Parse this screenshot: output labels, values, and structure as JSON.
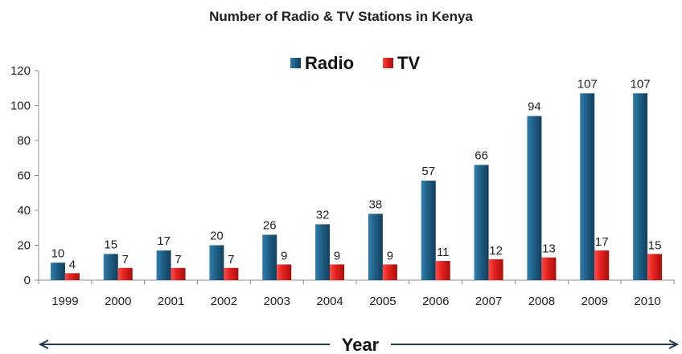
{
  "chart_data": {
    "type": "bar",
    "title": "Number of Radio & TV Stations in Kenya",
    "xlabel": "Year",
    "ylabel": "",
    "ylim": [
      0,
      120
    ],
    "yticks": [
      0,
      20,
      40,
      60,
      80,
      100,
      120
    ],
    "categories": [
      "1999",
      "2000",
      "2001",
      "2002",
      "2003",
      "2004",
      "2005",
      "2006",
      "2007",
      "2008",
      "2009",
      "2010"
    ],
    "series": [
      {
        "name": "Radio",
        "color": "#1f5f86",
        "values": [
          10,
          15,
          17,
          20,
          26,
          32,
          38,
          57,
          66,
          94,
          107,
          107
        ]
      },
      {
        "name": "TV",
        "color": "#e0201d",
        "values": [
          4,
          7,
          7,
          7,
          9,
          9,
          9,
          11,
          12,
          13,
          17,
          15
        ]
      }
    ],
    "legend_position": "top-center",
    "grid": false,
    "data_labels": true
  }
}
